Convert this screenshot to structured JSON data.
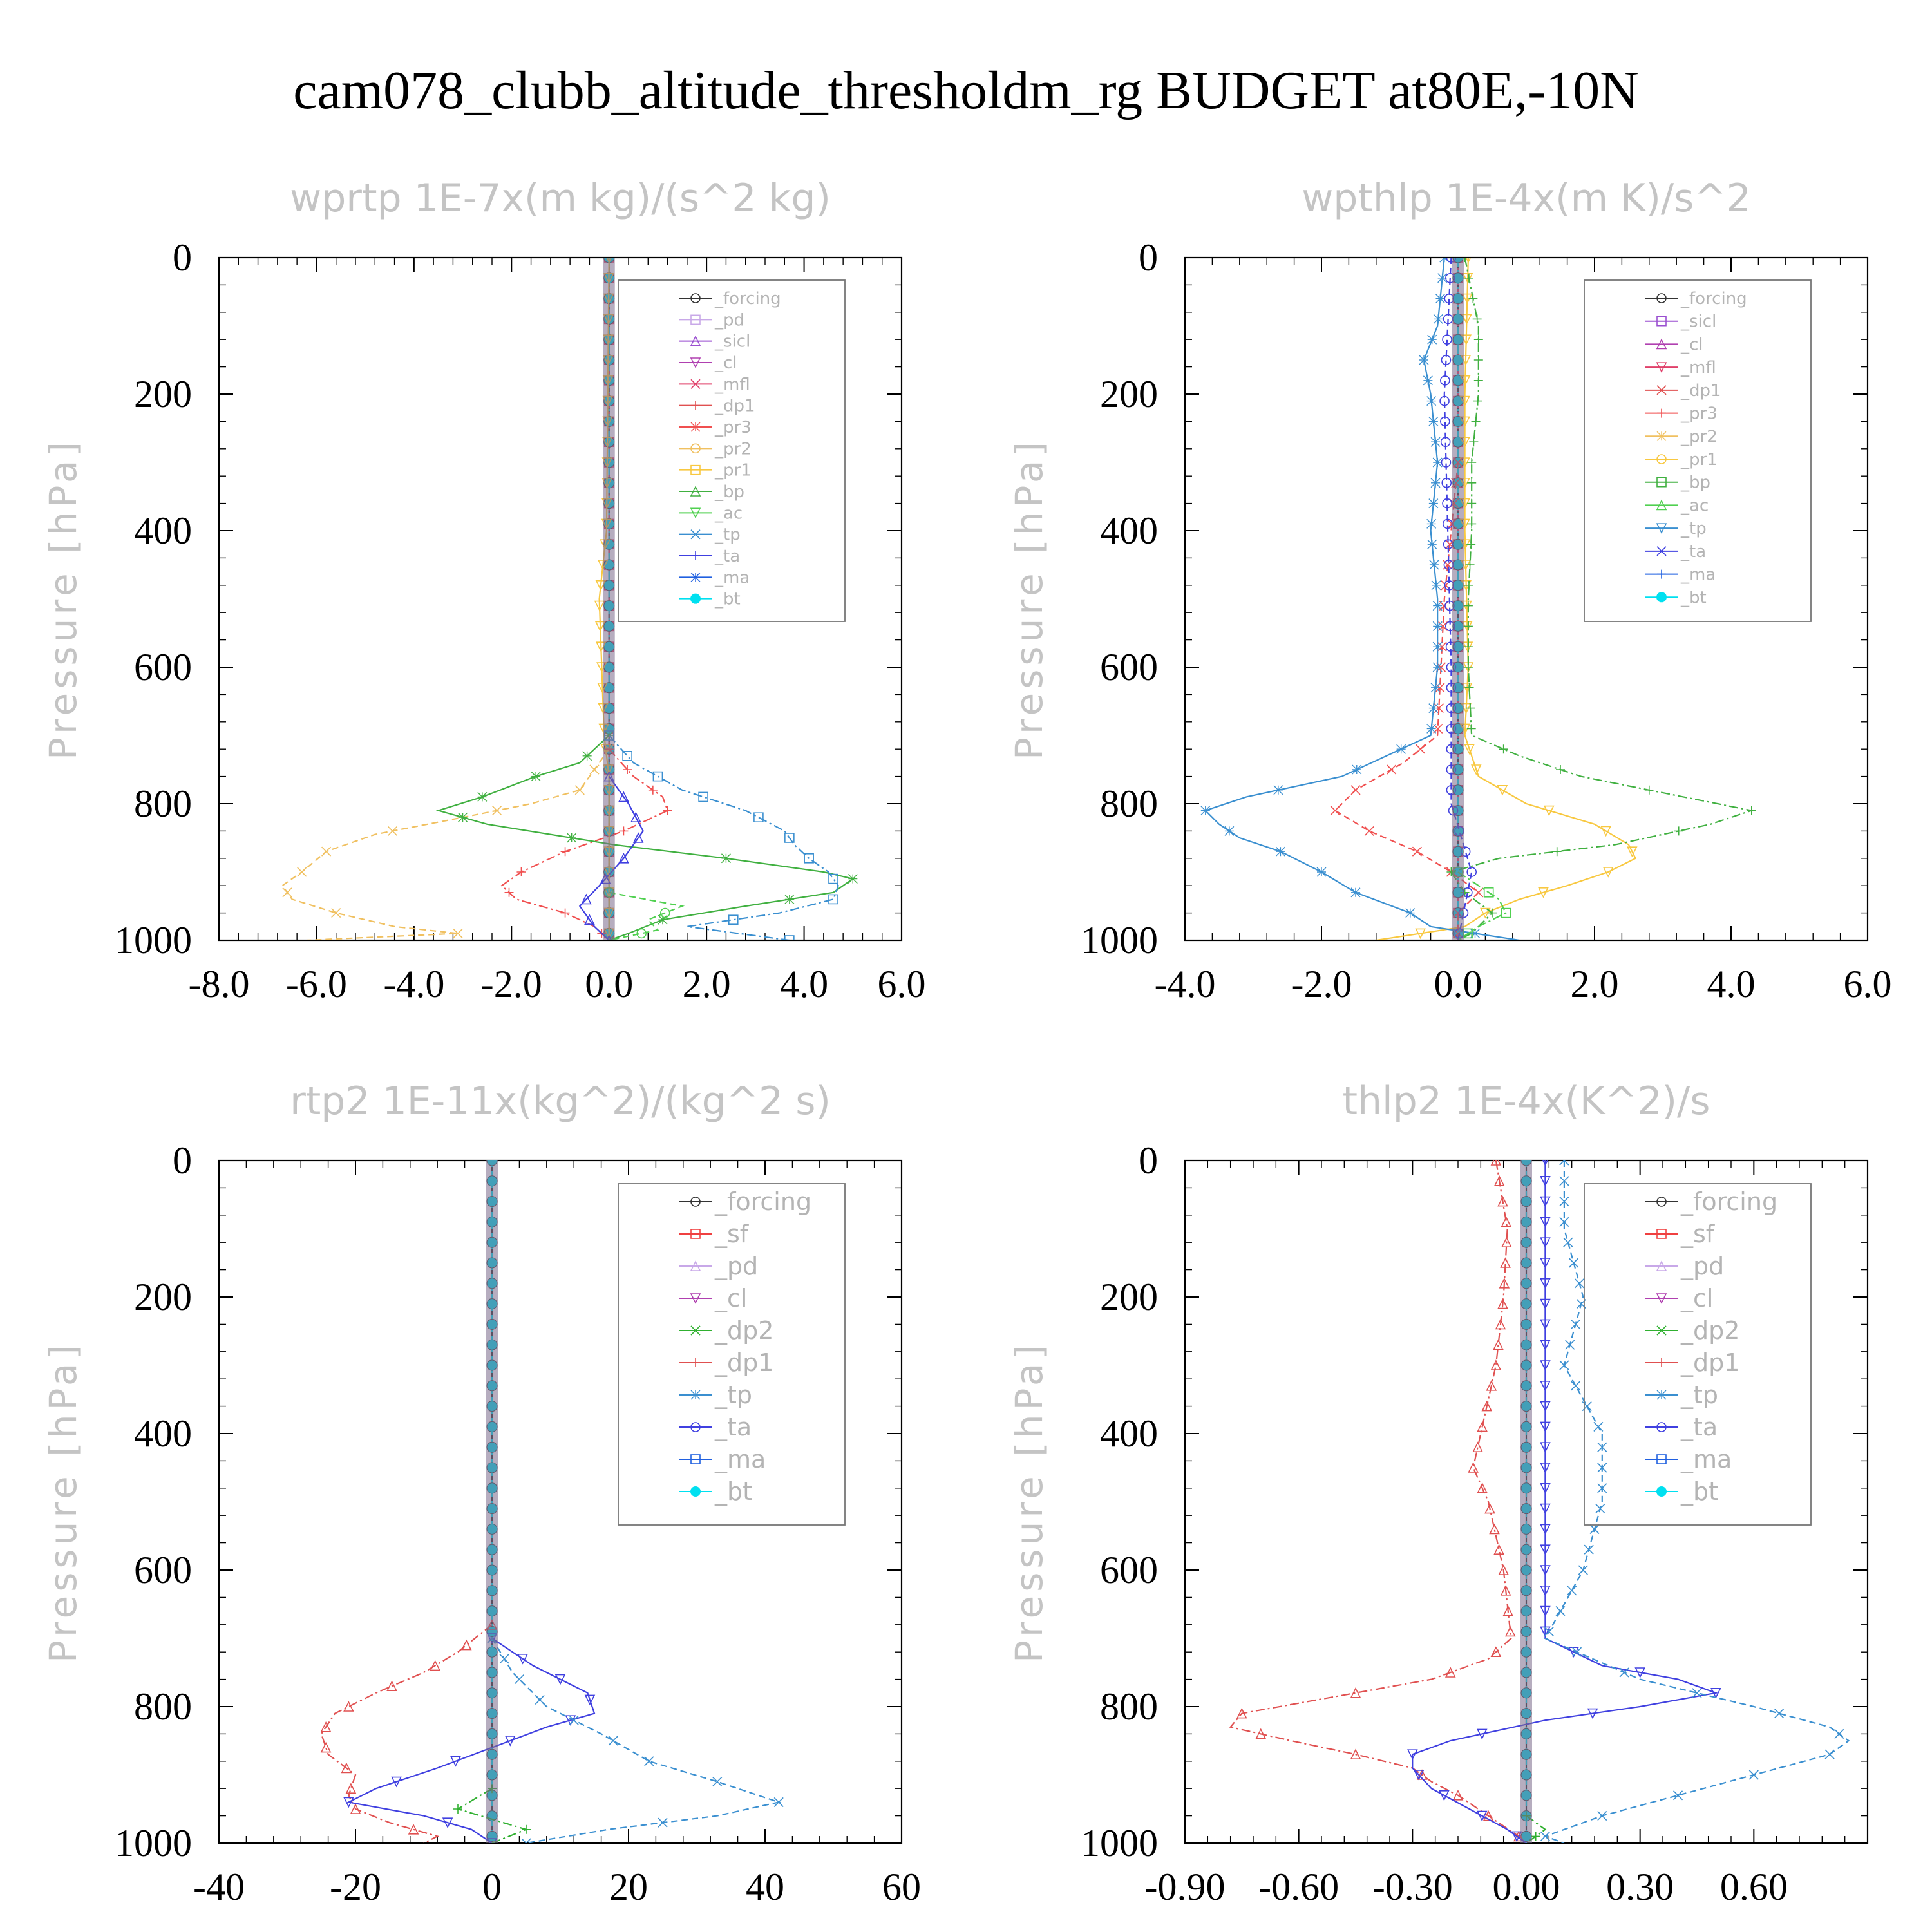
{
  "figure_title": "cam078_clubb_altitude_thresholdm_rg  BUDGET at80E,-10N",
  "colors": {
    "_forcing": "#333333",
    "_pd": "#c8a8e8",
    "_sicl": "#9a4fd0",
    "_cl": "#b040b0",
    "_mfl": "#e0406a",
    "_dp1": "#e05050",
    "_pr3": "#f05050",
    "_pr2": "#f0c060",
    "_pr1": "#f8c840",
    "_bp": "#40b040",
    "_ac": "#50d050",
    "_tp": "#3a8fd0",
    "_ta": "#4040e0",
    "_ma": "#2060e0",
    "_bt": "#00e0f0",
    "_sf": "#f04040",
    "_dp2": "#30b030"
  },
  "chart_data": [
    {
      "type": "line",
      "title": "wprtp  1E-7x(m kg)/(s^2 kg)",
      "xlabel": "",
      "ylabel": "Pressure [hPa]",
      "xlim": [
        -8,
        6
      ],
      "ylim": [
        1000,
        0
      ],
      "xticks": [
        "-8.0",
        "-6.0",
        "-4.0",
        "-2.0",
        "0.0",
        "2.0",
        "4.0",
        "6.0"
      ],
      "yticks": [
        "0",
        "200",
        "400",
        "600",
        "800",
        "1000"
      ],
      "legend": [
        "_forcing",
        "_pd",
        "_sicl",
        "_cl",
        "_mfl",
        "_dp1",
        "_pr3",
        "_pr2",
        "_pr1",
        "_bp",
        "_ac",
        "_tp",
        "_ta",
        "_ma",
        "_bt"
      ],
      "series": [
        {
          "name": "_forcing",
          "y": [
            0,
            1000
          ],
          "x": [
            0,
            0
          ]
        },
        {
          "name": "_mfl",
          "y": [
            0,
            1000
          ],
          "x": [
            0,
            0
          ]
        },
        {
          "name": "_bt",
          "y": [
            0,
            1000
          ],
          "x": [
            0,
            0
          ]
        },
        {
          "name": "_pr1",
          "y": [
            0,
            400,
            500,
            600,
            700,
            760,
            800,
            840,
            880,
            920,
            960,
            1000
          ],
          "x": [
            0,
            -0.05,
            -0.2,
            -0.15,
            -0.1,
            0,
            0,
            0,
            0,
            0,
            0,
            0
          ]
        },
        {
          "name": "_pr2",
          "y": [
            720,
            780,
            800,
            820,
            845,
            870,
            900,
            920,
            940,
            960,
            980,
            990,
            1000
          ],
          "x": [
            0,
            -0.6,
            -1.6,
            -3,
            -4.8,
            -5.8,
            -6.3,
            -6.7,
            -6.5,
            -5.6,
            -4.4,
            -3.1,
            -6.2
          ]
        },
        {
          "name": "_pr3",
          "y": [
            720,
            760,
            790,
            810,
            840,
            870,
            900,
            920,
            940,
            960,
            980,
            1000
          ],
          "x": [
            0,
            0.5,
            1.1,
            1.2,
            0.3,
            -0.9,
            -1.8,
            -2.2,
            -1.9,
            -0.9,
            -0.3,
            0
          ]
        },
        {
          "name": "_bp",
          "y": [
            700,
            740,
            760,
            790,
            810,
            830,
            860,
            880,
            900,
            910,
            930,
            950,
            970,
            990,
            1000
          ],
          "x": [
            0,
            -0.6,
            -1.5,
            -2.6,
            -3.5,
            -2.5,
            0.1,
            2.4,
            4.4,
            5,
            4.6,
            2.8,
            1.1,
            0.4,
            0
          ]
        },
        {
          "name": "_ac",
          "y": [
            930,
            950,
            970,
            985,
            1000
          ],
          "x": [
            0,
            1.5,
            0.8,
            1,
            0
          ]
        },
        {
          "name": "_tp",
          "y": [
            700,
            740,
            780,
            810,
            840,
            860,
            880,
            900,
            920,
            940,
            960,
            980,
            1000
          ],
          "x": [
            0,
            0.5,
            1.5,
            2.8,
            3.6,
            3.8,
            4.1,
            4.5,
            4.7,
            4.6,
            3.5,
            1.6,
            3.7
          ]
        },
        {
          "name": "_ta",
          "y": [
            760,
            800,
            840,
            880,
            920,
            950,
            980,
            1000
          ],
          "x": [
            0,
            0.4,
            0.7,
            0.3,
            -0.2,
            -0.6,
            -0.3,
            0
          ]
        }
      ]
    },
    {
      "type": "line",
      "title": "wpthlp  1E-4x(m K)/s^2",
      "xlabel": "",
      "ylabel": "Pressure [hPa]",
      "xlim": [
        -4,
        6
      ],
      "ylim": [
        1000,
        0
      ],
      "xticks": [
        "-4.0",
        "-2.0",
        "0.0",
        "2.0",
        "4.0",
        "6.0"
      ],
      "yticks": [
        "0",
        "200",
        "400",
        "600",
        "800",
        "1000"
      ],
      "legend": [
        "_forcing",
        "_sicl",
        "_cl",
        "_mfl",
        "_dp1",
        "_pr3",
        "_pr2",
        "_pr1",
        "_bp",
        "_ac",
        "_tp",
        "_ta",
        "_ma",
        "_bt"
      ],
      "series": [
        {
          "name": "_forcing",
          "y": [
            0,
            1000
          ],
          "x": [
            0,
            0
          ]
        },
        {
          "name": "_mfl",
          "y": [
            0,
            1000
          ],
          "x": [
            0,
            0
          ]
        },
        {
          "name": "_bt",
          "y": [
            0,
            1000
          ],
          "x": [
            0,
            0
          ]
        },
        {
          "name": "_pr1",
          "y": [
            0,
            200,
            400,
            600,
            700,
            760,
            800,
            830,
            860,
            880,
            900,
            920,
            940,
            960,
            980,
            1000
          ],
          "x": [
            0.15,
            0.1,
            0.1,
            0.15,
            0.1,
            0.3,
            1,
            2,
            2.5,
            2.6,
            2.2,
            1.6,
            0.9,
            0.4,
            0.1,
            -1.2
          ]
        },
        {
          "name": "_pr3",
          "y": [
            300,
            500,
            700,
            740,
            780,
            810,
            840,
            870,
            900,
            930,
            960,
            1000
          ],
          "x": [
            0,
            -0.2,
            -0.3,
            -0.8,
            -1.5,
            -1.8,
            -1.3,
            -0.6,
            -0.1,
            0.3,
            0,
            0
          ]
        },
        {
          "name": "_bp",
          "y": [
            0,
            100,
            200,
            300,
            400,
            500,
            600,
            700,
            730,
            760,
            790,
            810,
            830,
            860,
            880,
            900,
            930,
            960,
            990,
            1000
          ],
          "x": [
            0.1,
            0.3,
            0.3,
            0.2,
            0.2,
            0.15,
            0.15,
            0.2,
            0.9,
            1.8,
            3.3,
            4.3,
            3.7,
            2.3,
            0.6,
            -0.1,
            0.1,
            0.5,
            0.2,
            0
          ]
        },
        {
          "name": "_tp",
          "y": [
            0,
            100,
            150,
            200,
            300,
            400,
            500,
            600,
            700,
            760,
            790,
            810,
            830,
            850,
            870,
            900,
            930,
            960,
            980,
            1000
          ],
          "x": [
            -0.2,
            -0.3,
            -0.5,
            -0.4,
            -0.3,
            -0.4,
            -0.3,
            -0.3,
            -0.4,
            -1.7,
            -3.1,
            -3.7,
            -3.5,
            -3.2,
            -2.6,
            -2,
            -1.5,
            -0.7,
            -0.4,
            0.9
          ]
        },
        {
          "name": "_ta",
          "y": [
            0,
            200,
            400,
            600,
            800,
            900,
            950,
            1000
          ],
          "x": [
            -0.1,
            -0.2,
            -0.15,
            -0.1,
            -0.1,
            0.2,
            0.1,
            0
          ]
        },
        {
          "name": "_ac",
          "y": [
            900,
            940,
            960,
            980,
            1000
          ],
          "x": [
            0,
            0.6,
            0.7,
            0.3,
            0
          ]
        }
      ]
    },
    {
      "type": "line",
      "title": "rtp2  1E-11x(kg^2)/(kg^2 s)",
      "xlabel": "",
      "ylabel": "Pressure [hPa]",
      "xlim": [
        -40,
        60
      ],
      "ylim": [
        1000,
        0
      ],
      "xticks": [
        "-40",
        "-20",
        "0",
        "20",
        "40",
        "60"
      ],
      "yticks": [
        "0",
        "200",
        "400",
        "600",
        "800",
        "1000"
      ],
      "legend": [
        "_forcing",
        "_sf",
        "_pd",
        "_cl",
        "_dp2",
        "_dp1",
        "_tp",
        "_ta",
        "_ma",
        "_bt"
      ],
      "series": [
        {
          "name": "_forcing",
          "y": [
            0,
            1000
          ],
          "x": [
            0,
            0
          ]
        },
        {
          "name": "_bt",
          "y": [
            0,
            1000
          ],
          "x": [
            0,
            0
          ]
        },
        {
          "name": "_dp1",
          "y": [
            680,
            720,
            750,
            780,
            810,
            840,
            870,
            900,
            930,
            950,
            970,
            990,
            1000
          ],
          "x": [
            0,
            -5,
            -10,
            -17,
            -23,
            -25,
            -24,
            -20,
            -21,
            -20,
            -15,
            -8,
            -10
          ]
        },
        {
          "name": "_ta",
          "y": [
            700,
            740,
            780,
            810,
            830,
            860,
            890,
            920,
            940,
            960,
            980,
            1000
          ],
          "x": [
            0,
            6,
            14,
            15,
            8,
            0,
            -8,
            -17,
            -21,
            -10,
            -3,
            0
          ]
        },
        {
          "name": "_tp",
          "y": [
            700,
            750,
            800,
            840,
            880,
            910,
            940,
            960,
            980,
            1000
          ],
          "x": [
            0,
            3,
            8,
            16,
            23,
            33,
            42,
            33,
            17,
            5
          ]
        },
        {
          "name": "_dp2",
          "y": [
            920,
            950,
            980,
            1000
          ],
          "x": [
            0,
            -5,
            5,
            0
          ]
        }
      ]
    },
    {
      "type": "line",
      "title": "thlp2  1E-4x(K^2)/s",
      "xlabel": "",
      "ylabel": "Pressure [hPa]",
      "xlim": [
        -0.9,
        0.9
      ],
      "ylim": [
        1000,
        0
      ],
      "xticks": [
        "-0.90",
        "-0.60",
        "-0.30",
        "0.00",
        "0.30",
        "0.60"
      ],
      "yticks": [
        "0",
        "200",
        "400",
        "600",
        "800",
        "1000"
      ],
      "legend": [
        "_forcing",
        "_sf",
        "_pd",
        "_cl",
        "_dp2",
        "_dp1",
        "_tp",
        "_ta",
        "_ma",
        "_bt"
      ],
      "series": [
        {
          "name": "_forcing",
          "y": [
            0,
            1000
          ],
          "x": [
            0,
            0
          ]
        },
        {
          "name": "_bt",
          "y": [
            0,
            1000
          ],
          "x": [
            0,
            0
          ]
        },
        {
          "name": "_dp1",
          "y": [
            0,
            100,
            200,
            300,
            400,
            450,
            500,
            600,
            700,
            730,
            760,
            790,
            810,
            830,
            850,
            870,
            890,
            910,
            930,
            960,
            990,
            1000
          ],
          "x": [
            -0.08,
            -0.05,
            -0.06,
            -0.08,
            -0.12,
            -0.14,
            -0.1,
            -0.06,
            -0.04,
            -0.1,
            -0.25,
            -0.55,
            -0.75,
            -0.78,
            -0.62,
            -0.45,
            -0.3,
            -0.25,
            -0.18,
            -0.1,
            -0.02,
            0
          ]
        },
        {
          "name": "_ta",
          "y": [
            0,
            200,
            400,
            600,
            700,
            740,
            760,
            780,
            800,
            820,
            850,
            870,
            890,
            920,
            950,
            980,
            1000
          ],
          "x": [
            0.05,
            0.05,
            0.05,
            0.05,
            0.05,
            0.2,
            0.4,
            0.5,
            0.3,
            0.05,
            -0.2,
            -0.3,
            -0.3,
            -0.25,
            -0.15,
            -0.05,
            0
          ]
        },
        {
          "name": "_tp",
          "y": [
            0,
            100,
            200,
            300,
            400,
            500,
            600,
            700,
            760,
            800,
            830,
            850,
            870,
            900,
            930,
            960,
            990,
            1000
          ],
          "x": [
            0.1,
            0.1,
            0.15,
            0.1,
            0.2,
            0.2,
            0.15,
            0.05,
            0.3,
            0.6,
            0.8,
            0.85,
            0.8,
            0.6,
            0.4,
            0.2,
            0.05,
            0.1
          ]
        },
        {
          "name": "_dp2",
          "y": [
            960,
            980,
            1000
          ],
          "x": [
            0,
            0.05,
            0
          ]
        }
      ]
    }
  ]
}
